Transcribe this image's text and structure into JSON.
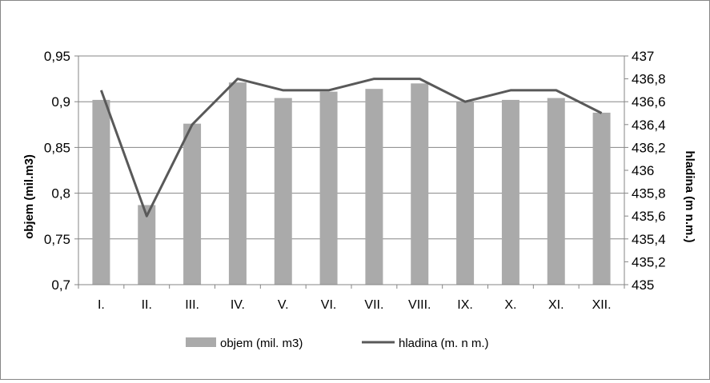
{
  "chart_data": {
    "type": "bar+line",
    "categories": [
      "I.",
      "II.",
      "III.",
      "IV.",
      "V.",
      "VI.",
      "VII.",
      "VIII.",
      "IX.",
      "X.",
      "XI.",
      "XII."
    ],
    "series": [
      {
        "name": "objem (mil. m3)",
        "type": "bar",
        "axis": "left",
        "color": "#aaaaaa",
        "values": [
          0.902,
          0.787,
          0.876,
          0.921,
          0.904,
          0.911,
          0.914,
          0.92,
          0.9,
          0.902,
          0.904,
          0.888
        ]
      },
      {
        "name": "hladina (m. n m.)",
        "type": "line",
        "axis": "right",
        "color": "#595959",
        "values": [
          436.7,
          435.6,
          436.4,
          436.8,
          436.7,
          436.7,
          436.8,
          436.8,
          436.6,
          436.7,
          436.7,
          436.5
        ]
      }
    ],
    "y_left": {
      "label": "objem (mil.m3)",
      "min": 0.7,
      "max": 0.95,
      "ticks": [
        "0,7",
        "0,75",
        "0,8",
        "0,85",
        "0,9",
        "0,95"
      ]
    },
    "y_right": {
      "label": "hladina (m n.m.)",
      "min": 435,
      "max": 437,
      "ticks": [
        "435",
        "435,2",
        "435,4",
        "435,6",
        "435,8",
        "436",
        "436,2",
        "436,4",
        "436,6",
        "436,8",
        "437"
      ]
    },
    "grid": "horizontal",
    "legend": "bottom",
    "title": ""
  }
}
